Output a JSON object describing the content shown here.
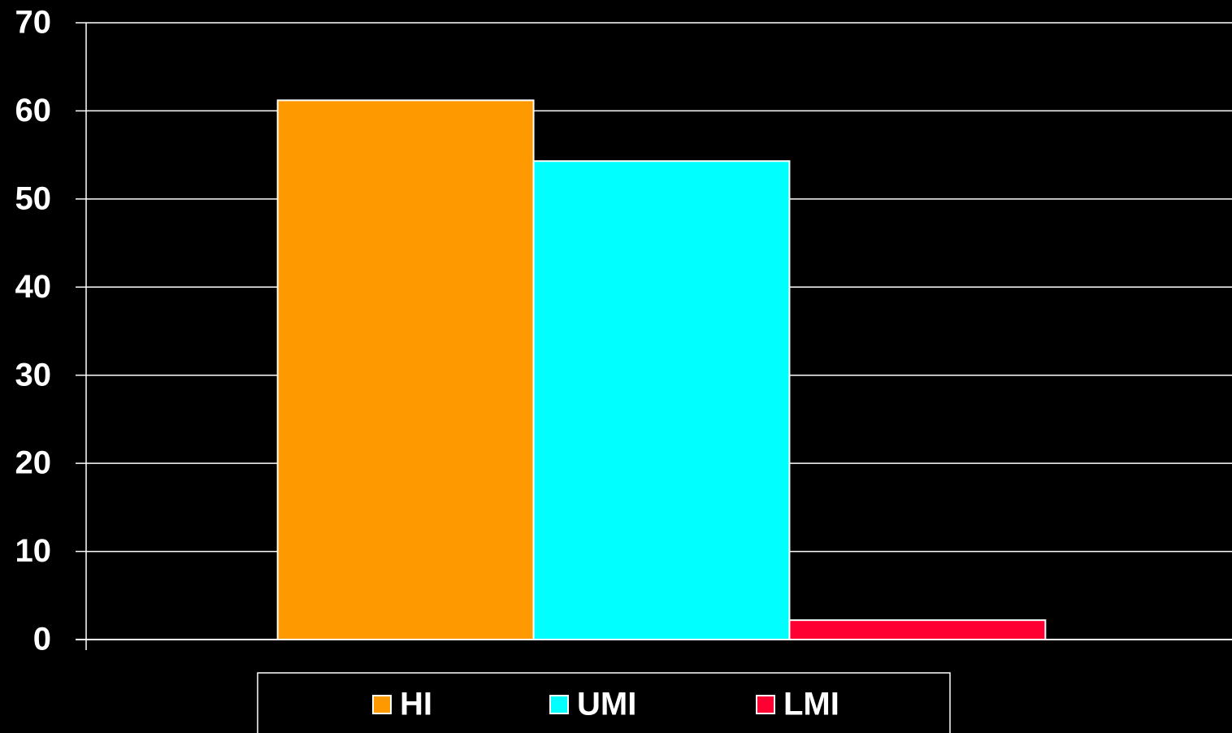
{
  "chart_data": {
    "type": "bar",
    "categories": [
      null
    ],
    "series": [
      {
        "name": "HI",
        "color": "#ff9900",
        "values": [
          61.2
        ]
      },
      {
        "name": "UMI",
        "color": "#00ffff",
        "values": [
          54.3
        ]
      },
      {
        "name": "LMI",
        "color": "#ff0033",
        "values": [
          2.2
        ]
      }
    ],
    "ylim": [
      0,
      70
    ],
    "yticks": [
      0,
      10,
      20,
      30,
      40,
      50,
      60,
      70
    ],
    "grid": true,
    "legend": "bottom"
  }
}
